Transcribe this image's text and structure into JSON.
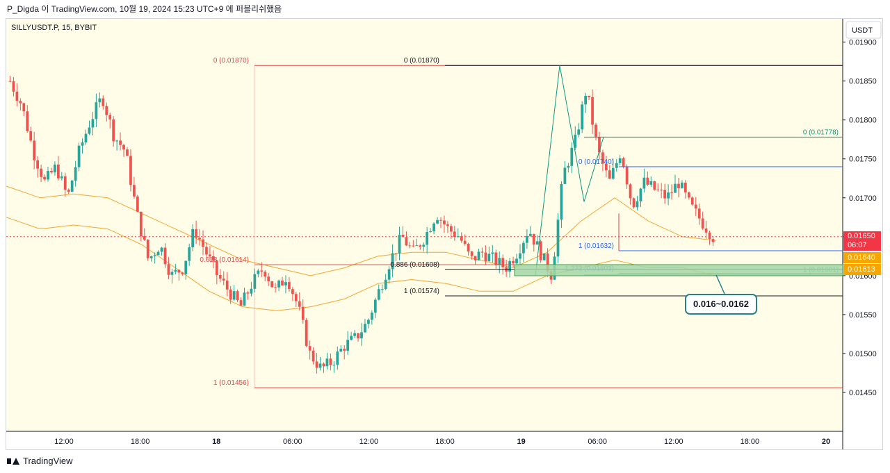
{
  "header": {
    "caption": "P_Digda 이 TradingView.com, 10월 19, 2024 15:23 UTC+9 에 퍼블리쉬했음"
  },
  "symbol": {
    "label": "SILLYUSDT.P, 15, BYBIT"
  },
  "footer": {
    "brand": "TradingView"
  },
  "axis_currency": "USDT",
  "callout": {
    "text": "0.016~0.0162"
  },
  "price_tags": {
    "last": {
      "value": "0.01650",
      "countdown": "06:07",
      "color": "#f23645"
    },
    "tag2": {
      "value": "0.01640",
      "color": "#f7a600"
    },
    "tag3": {
      "value": "0.01613",
      "color": "#f7a600"
    }
  },
  "colors": {
    "background": "#fffde7",
    "up": "#26a69a",
    "down": "#ef5350",
    "band": "#f4a52e",
    "fib_red": "#e0474c",
    "fib_black": "#131722",
    "fib_blue": "#2962ff",
    "fib_teal": "#089981",
    "zone": "#a5d6a7"
  },
  "chart_data": {
    "type": "candlestick",
    "ylim": [
      0.014,
      0.0193
    ],
    "yticks": [
      "0.01900",
      "0.01850",
      "0.01800",
      "0.01750",
      "0.01700",
      "0.01650",
      "0.01600",
      "0.01550",
      "0.01500",
      "0.01450"
    ],
    "xticks": [
      "12:00",
      "18:00",
      "18",
      "06:00",
      "12:00",
      "18:00",
      "19",
      "06:00",
      "12:00",
      "18:00",
      "20"
    ],
    "close_path": [
      0.0185,
      0.0182,
      0.0176,
      0.0172,
      0.0174,
      0.017,
      0.0176,
      0.018,
      0.0183,
      0.0178,
      0.0176,
      0.0168,
      0.0162,
      0.0164,
      0.016,
      0.0161,
      0.0166,
      0.0163,
      0.016,
      0.0158,
      0.0156,
      0.0159,
      0.0161,
      0.0158,
      0.016,
      0.0156,
      0.015,
      0.0148,
      0.0149,
      0.0151,
      0.0152,
      0.0154,
      0.0158,
      0.0162,
      0.0165,
      0.0163,
      0.0165,
      0.0168,
      0.0166,
      0.0165,
      0.0162,
      0.0163,
      0.0162,
      0.0161,
      0.0163,
      0.0166,
      0.0163,
      0.016,
      0.0173,
      0.0177,
      0.0184,
      0.0176,
      0.0172,
      0.0176,
      0.0169,
      0.0172,
      0.0171,
      0.017,
      0.0172,
      0.0169,
      0.0167,
      0.0165
    ],
    "band_upper": [
      0.01715,
      0.017,
      0.01705,
      0.017,
      0.0168,
      0.0166,
      0.0164,
      0.0162,
      0.0161,
      0.016,
      0.0161,
      0.01625,
      0.0163,
      0.0163,
      0.0162,
      0.0161,
      0.0163,
      0.0167,
      0.017,
      0.0167,
      0.0165,
      0.01645
    ],
    "band_lower": [
      0.01675,
      0.0166,
      0.01665,
      0.0166,
      0.0164,
      0.0161,
      0.0158,
      0.0156,
      0.01555,
      0.0156,
      0.0157,
      0.0159,
      0.01595,
      0.0159,
      0.0158,
      0.0158,
      0.016,
      0.0161,
      0.0162,
      0.0161,
      0.0161,
      0.016
    ],
    "fib_levels": [
      {
        "label": "0 (0.01870)",
        "price": 0.0187,
        "color": "#e0474c"
      },
      {
        "label": "0.618 (0.01614)",
        "price": 0.01614,
        "color": "#e0474c"
      },
      {
        "label": "1 (0.01456)",
        "price": 0.01456,
        "color": "#e0474c"
      },
      {
        "label": "0 (0.01870)",
        "price": 0.0187,
        "color": "#131722"
      },
      {
        "label": "0.886 (0.01608)",
        "price": 0.01608,
        "color": "#131722"
      },
      {
        "label": "1 (0.01574)",
        "price": 0.01574,
        "color": "#131722"
      },
      {
        "label": "0 (0.01778)",
        "price": 0.01778,
        "color": "#089981"
      },
      {
        "label": "1 (0.01601)",
        "price": 0.01601,
        "color": "#089981"
      },
      {
        "label": "0 (0.01740)",
        "price": 0.0174,
        "color": "#2962ff"
      },
      {
        "label": "1 (0.01632)",
        "price": 0.01632,
        "color": "#2962ff"
      },
      {
        "label": "1.272 (0.01603)",
        "price": 0.01603,
        "color": "#2962ff"
      }
    ]
  }
}
